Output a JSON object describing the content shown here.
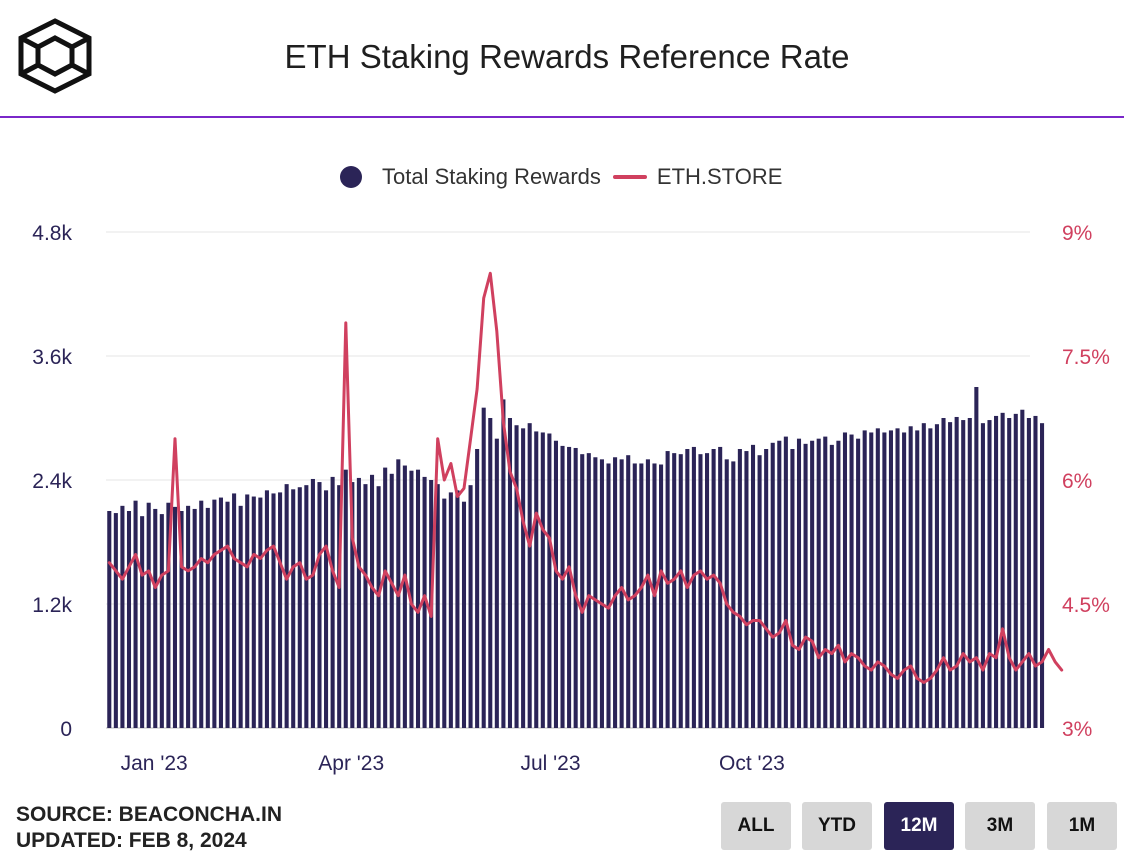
{
  "header": {
    "title": "ETH Staking Rewards Reference Rate"
  },
  "legend": {
    "bars_label": "Total Staking Rewards",
    "line_label": "ETH.STORE"
  },
  "colors": {
    "bars": "#2b2457",
    "line": "#d0405f",
    "accent": "#7a27c9"
  },
  "chart_data": {
    "type": "bar",
    "x_tick_labels": [
      "Jan '23",
      "Apr '23",
      "Jul '23",
      "Oct '23"
    ],
    "y_left": {
      "ticks": [
        "0",
        "1.2k",
        "2.4k",
        "3.6k",
        "4.8k"
      ],
      "ylim": [
        0,
        4800
      ]
    },
    "y_right": {
      "ticks": [
        "3%",
        "4.5%",
        "6%",
        "7.5%",
        "9%"
      ],
      "ylim": [
        3,
        9
      ]
    },
    "grid": true,
    "legend_position": "top",
    "x_range": [
      "2022-12-10",
      "2024-02-05"
    ],
    "series": [
      {
        "name": "Total Staking Rewards",
        "type": "bar",
        "axis": "left",
        "x_start": "2022-12-10",
        "step_days": 3,
        "values": [
          2100,
          2080,
          2150,
          2100,
          2200,
          2050,
          2180,
          2120,
          2070,
          2180,
          2140,
          2100,
          2150,
          2120,
          2200,
          2130,
          2210,
          2230,
          2190,
          2270,
          2150,
          2260,
          2240,
          2230,
          2300,
          2270,
          2280,
          2360,
          2310,
          2330,
          2350,
          2410,
          2380,
          2300,
          2430,
          2350,
          2500,
          2380,
          2420,
          2360,
          2450,
          2340,
          2520,
          2460,
          2600,
          2540,
          2490,
          2500,
          2430,
          2400,
          2360,
          2220,
          2280,
          2300,
          2190,
          2350,
          2700,
          3100,
          3000,
          2800,
          3180,
          3000,
          2930,
          2900,
          2950,
          2870,
          2860,
          2850,
          2780,
          2730,
          2720,
          2710,
          2650,
          2660,
          2620,
          2600,
          2560,
          2620,
          2600,
          2640,
          2560,
          2560,
          2600,
          2560,
          2550,
          2680,
          2660,
          2650,
          2700,
          2720,
          2650,
          2660,
          2700,
          2720,
          2600,
          2580,
          2700,
          2680,
          2740,
          2640,
          2700,
          2760,
          2780,
          2820,
          2700,
          2800,
          2750,
          2780,
          2800,
          2820,
          2740,
          2780,
          2860,
          2840,
          2800,
          2880,
          2860,
          2900,
          2860,
          2880,
          2900,
          2860,
          2920,
          2880,
          2950,
          2900,
          2940,
          3000,
          2960,
          3010,
          2980,
          3000,
          3300,
          2950,
          2980,
          3020,
          3050,
          3000,
          3040,
          3080,
          3000,
          3020,
          2950
        ],
        "note_values": "daily rewards in ETH read from bar heights"
      },
      {
        "name": "ETH.STORE",
        "type": "line",
        "axis": "right",
        "x_start": "2022-12-10",
        "step_days": 3,
        "values": [
          5.0,
          4.9,
          4.8,
          4.95,
          5.1,
          4.85,
          4.9,
          4.7,
          4.85,
          4.9,
          6.5,
          4.95,
          4.9,
          4.95,
          5.05,
          5.0,
          5.1,
          5.15,
          5.2,
          5.05,
          5.0,
          4.95,
          5.1,
          5.05,
          5.15,
          5.2,
          5.0,
          4.8,
          4.95,
          5.0,
          4.8,
          4.85,
          5.1,
          5.2,
          4.9,
          4.7,
          7.9,
          5.3,
          4.95,
          4.85,
          4.7,
          4.6,
          4.9,
          4.75,
          4.6,
          4.85,
          4.5,
          4.4,
          4.6,
          4.35,
          6.5,
          6.0,
          6.2,
          5.8,
          5.9,
          6.5,
          7.1,
          8.2,
          8.5,
          7.8,
          6.7,
          6.1,
          5.9,
          5.5,
          5.2,
          5.6,
          5.4,
          5.3,
          4.9,
          4.8,
          4.95,
          4.6,
          4.4,
          4.6,
          4.55,
          4.5,
          4.45,
          4.6,
          4.7,
          4.55,
          4.6,
          4.7,
          4.85,
          4.6,
          4.9,
          4.75,
          4.8,
          4.9,
          4.7,
          4.85,
          4.9,
          4.8,
          4.85,
          4.75,
          4.5,
          4.4,
          4.35,
          4.25,
          4.3,
          4.3,
          4.2,
          4.1,
          4.15,
          4.3,
          4.0,
          3.95,
          4.1,
          4.05,
          3.85,
          3.95,
          3.9,
          4.0,
          3.8,
          3.9,
          3.85,
          3.75,
          3.7,
          3.8,
          3.75,
          3.65,
          3.6,
          3.7,
          3.75,
          3.6,
          3.55,
          3.6,
          3.7,
          3.85,
          3.7,
          3.75,
          3.9,
          3.8,
          3.85,
          3.7,
          3.9,
          3.85,
          4.2,
          3.85,
          3.7,
          3.8,
          3.9,
          3.75,
          3.8,
          3.95,
          3.8,
          3.7
        ],
        "note_values": "reference rate in % read from line positions"
      }
    ]
  },
  "controls": {
    "buttons": [
      {
        "label": "ALL",
        "active": false
      },
      {
        "label": "YTD",
        "active": false
      },
      {
        "label": "12M",
        "active": true
      },
      {
        "label": "3M",
        "active": false
      },
      {
        "label": "1M",
        "active": false
      }
    ]
  },
  "footer": {
    "source": "SOURCE: BEACONCHA.IN",
    "updated": "UPDATED: FEB 8, 2024"
  }
}
